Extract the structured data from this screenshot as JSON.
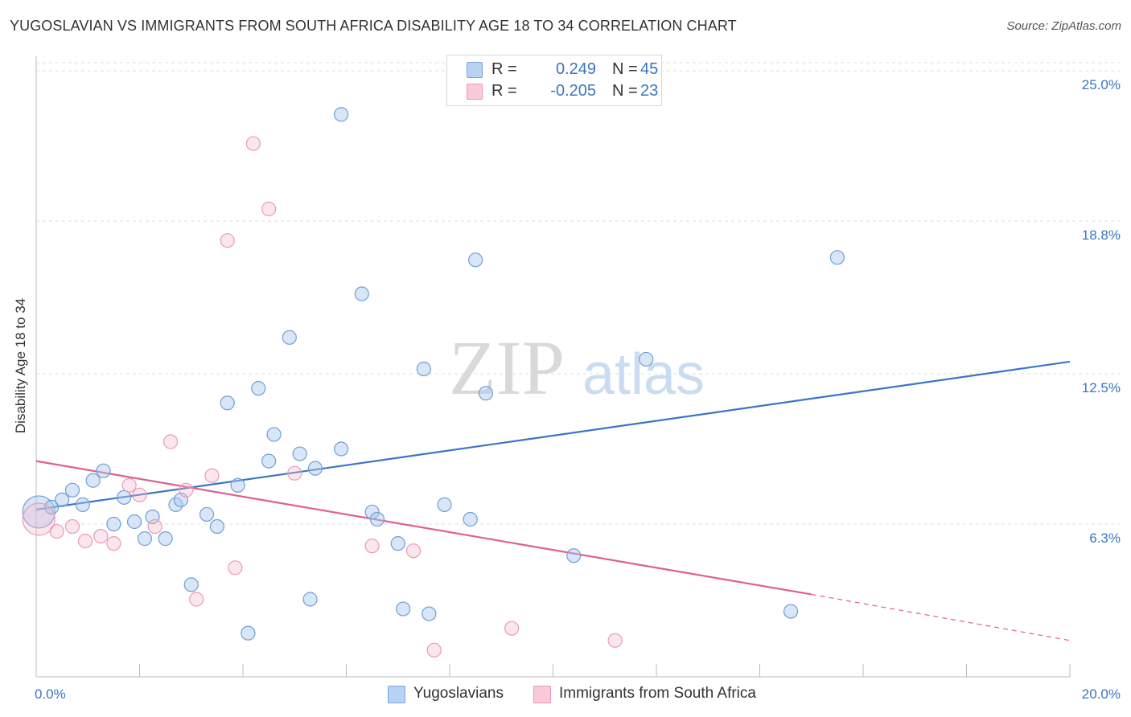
{
  "header": {
    "title": "YUGOSLAVIAN VS IMMIGRANTS FROM SOUTH AFRICA DISABILITY AGE 18 TO 34 CORRELATION CHART",
    "source": "Source: ZipAtlas.com"
  },
  "watermark": {
    "zip": "ZIP",
    "atlas": "atlas"
  },
  "legend": {
    "rows": [
      {
        "label": "R =",
        "r": "0.249",
        "n_label": "N =",
        "n": "45"
      },
      {
        "label": "R =",
        "r": "-0.205",
        "n_label": "N =",
        "n": "23"
      }
    ]
  },
  "bottom_legend": {
    "series1": "Yugoslavians",
    "series2": "Immigrants from South Africa"
  },
  "chart_data": {
    "type": "scatter",
    "title": "YUGOSLAVIAN VS IMMIGRANTS FROM SOUTH AFRICA DISABILITY AGE 18 TO 34 CORRELATION CHART",
    "xlabel": "",
    "ylabel": "Disability Age 18 to 34",
    "xlim": [
      0,
      20
    ],
    "ylim": [
      0,
      25.6
    ],
    "x_tick_labels": [
      "0.0%",
      "20.0%"
    ],
    "y_ticks": [
      6.3,
      12.5,
      18.8,
      25.0
    ],
    "y_tick_labels": [
      "6.3%",
      "12.5%",
      "18.8%",
      "25.0%"
    ],
    "grid": true,
    "legend_position": "top-center",
    "colors": {
      "series1": "#a9c8ee",
      "series1_line": "#3a75c4",
      "series2": "#f6b8cb",
      "series2_line": "#e0608b",
      "tick_label": "#3a75c4"
    },
    "series": [
      {
        "name": "Yugoslavians",
        "r": 0.249,
        "n": 45,
        "trend": {
          "x": [
            0.0,
            20.0
          ],
          "y": [
            6.9,
            13.0
          ]
        },
        "points": [
          {
            "x": 0.05,
            "y": 6.8,
            "big": true
          },
          {
            "x": 0.3,
            "y": 7.0
          },
          {
            "x": 0.5,
            "y": 7.3
          },
          {
            "x": 0.7,
            "y": 7.7
          },
          {
            "x": 0.9,
            "y": 7.1
          },
          {
            "x": 1.1,
            "y": 8.1
          },
          {
            "x": 1.3,
            "y": 8.5
          },
          {
            "x": 1.5,
            "y": 6.3
          },
          {
            "x": 1.7,
            "y": 7.4
          },
          {
            "x": 1.9,
            "y": 6.4
          },
          {
            "x": 2.1,
            "y": 5.7
          },
          {
            "x": 2.25,
            "y": 6.6
          },
          {
            "x": 2.5,
            "y": 5.7
          },
          {
            "x": 2.7,
            "y": 7.1
          },
          {
            "x": 2.8,
            "y": 7.3
          },
          {
            "x": 3.0,
            "y": 3.8
          },
          {
            "x": 3.3,
            "y": 6.7
          },
          {
            "x": 3.5,
            "y": 6.2
          },
          {
            "x": 3.7,
            "y": 11.3
          },
          {
            "x": 3.9,
            "y": 7.9
          },
          {
            "x": 4.1,
            "y": 1.8
          },
          {
            "x": 4.3,
            "y": 11.9
          },
          {
            "x": 4.5,
            "y": 8.9
          },
          {
            "x": 4.6,
            "y": 10.0
          },
          {
            "x": 4.9,
            "y": 14.0
          },
          {
            "x": 5.1,
            "y": 9.2
          },
          {
            "x": 5.3,
            "y": 3.2
          },
          {
            "x": 5.4,
            "y": 8.6
          },
          {
            "x": 5.9,
            "y": 9.4
          },
          {
            "x": 5.9,
            "y": 23.2
          },
          {
            "x": 6.3,
            "y": 15.8
          },
          {
            "x": 6.5,
            "y": 6.8
          },
          {
            "x": 6.6,
            "y": 6.5
          },
          {
            "x": 7.0,
            "y": 5.5
          },
          {
            "x": 7.1,
            "y": 2.8
          },
          {
            "x": 7.5,
            "y": 12.7
          },
          {
            "x": 7.6,
            "y": 2.6
          },
          {
            "x": 7.9,
            "y": 7.1
          },
          {
            "x": 8.4,
            "y": 6.5
          },
          {
            "x": 8.5,
            "y": 17.2
          },
          {
            "x": 8.7,
            "y": 11.7
          },
          {
            "x": 10.4,
            "y": 5.0
          },
          {
            "x": 11.8,
            "y": 13.1
          },
          {
            "x": 14.6,
            "y": 2.7
          },
          {
            "x": 15.5,
            "y": 17.3
          }
        ]
      },
      {
        "name": "Immigrants from South Africa",
        "r": -0.205,
        "n": 23,
        "trend": {
          "x": [
            0.0,
            15.0
          ],
          "y": [
            8.9,
            3.4
          ]
        },
        "trend_dashed": {
          "x": [
            15.0,
            20.0
          ],
          "y": [
            3.4,
            1.5
          ]
        },
        "points": [
          {
            "x": 0.05,
            "y": 6.5,
            "big": true
          },
          {
            "x": 0.4,
            "y": 6.0
          },
          {
            "x": 0.7,
            "y": 6.2
          },
          {
            "x": 0.95,
            "y": 5.6
          },
          {
            "x": 1.25,
            "y": 5.8
          },
          {
            "x": 1.5,
            "y": 5.5
          },
          {
            "x": 1.8,
            "y": 7.9
          },
          {
            "x": 2.0,
            "y": 7.5
          },
          {
            "x": 2.3,
            "y": 6.2
          },
          {
            "x": 2.6,
            "y": 9.7
          },
          {
            "x": 2.9,
            "y": 7.7
          },
          {
            "x": 3.1,
            "y": 3.2
          },
          {
            "x": 3.4,
            "y": 8.3
          },
          {
            "x": 3.7,
            "y": 18.0
          },
          {
            "x": 3.85,
            "y": 4.5
          },
          {
            "x": 4.2,
            "y": 22.0
          },
          {
            "x": 4.5,
            "y": 19.3
          },
          {
            "x": 5.0,
            "y": 8.4
          },
          {
            "x": 6.5,
            "y": 5.4
          },
          {
            "x": 7.3,
            "y": 5.2
          },
          {
            "x": 7.7,
            "y": 1.1
          },
          {
            "x": 9.2,
            "y": 2.0
          },
          {
            "x": 11.2,
            "y": 1.5
          }
        ]
      }
    ]
  }
}
